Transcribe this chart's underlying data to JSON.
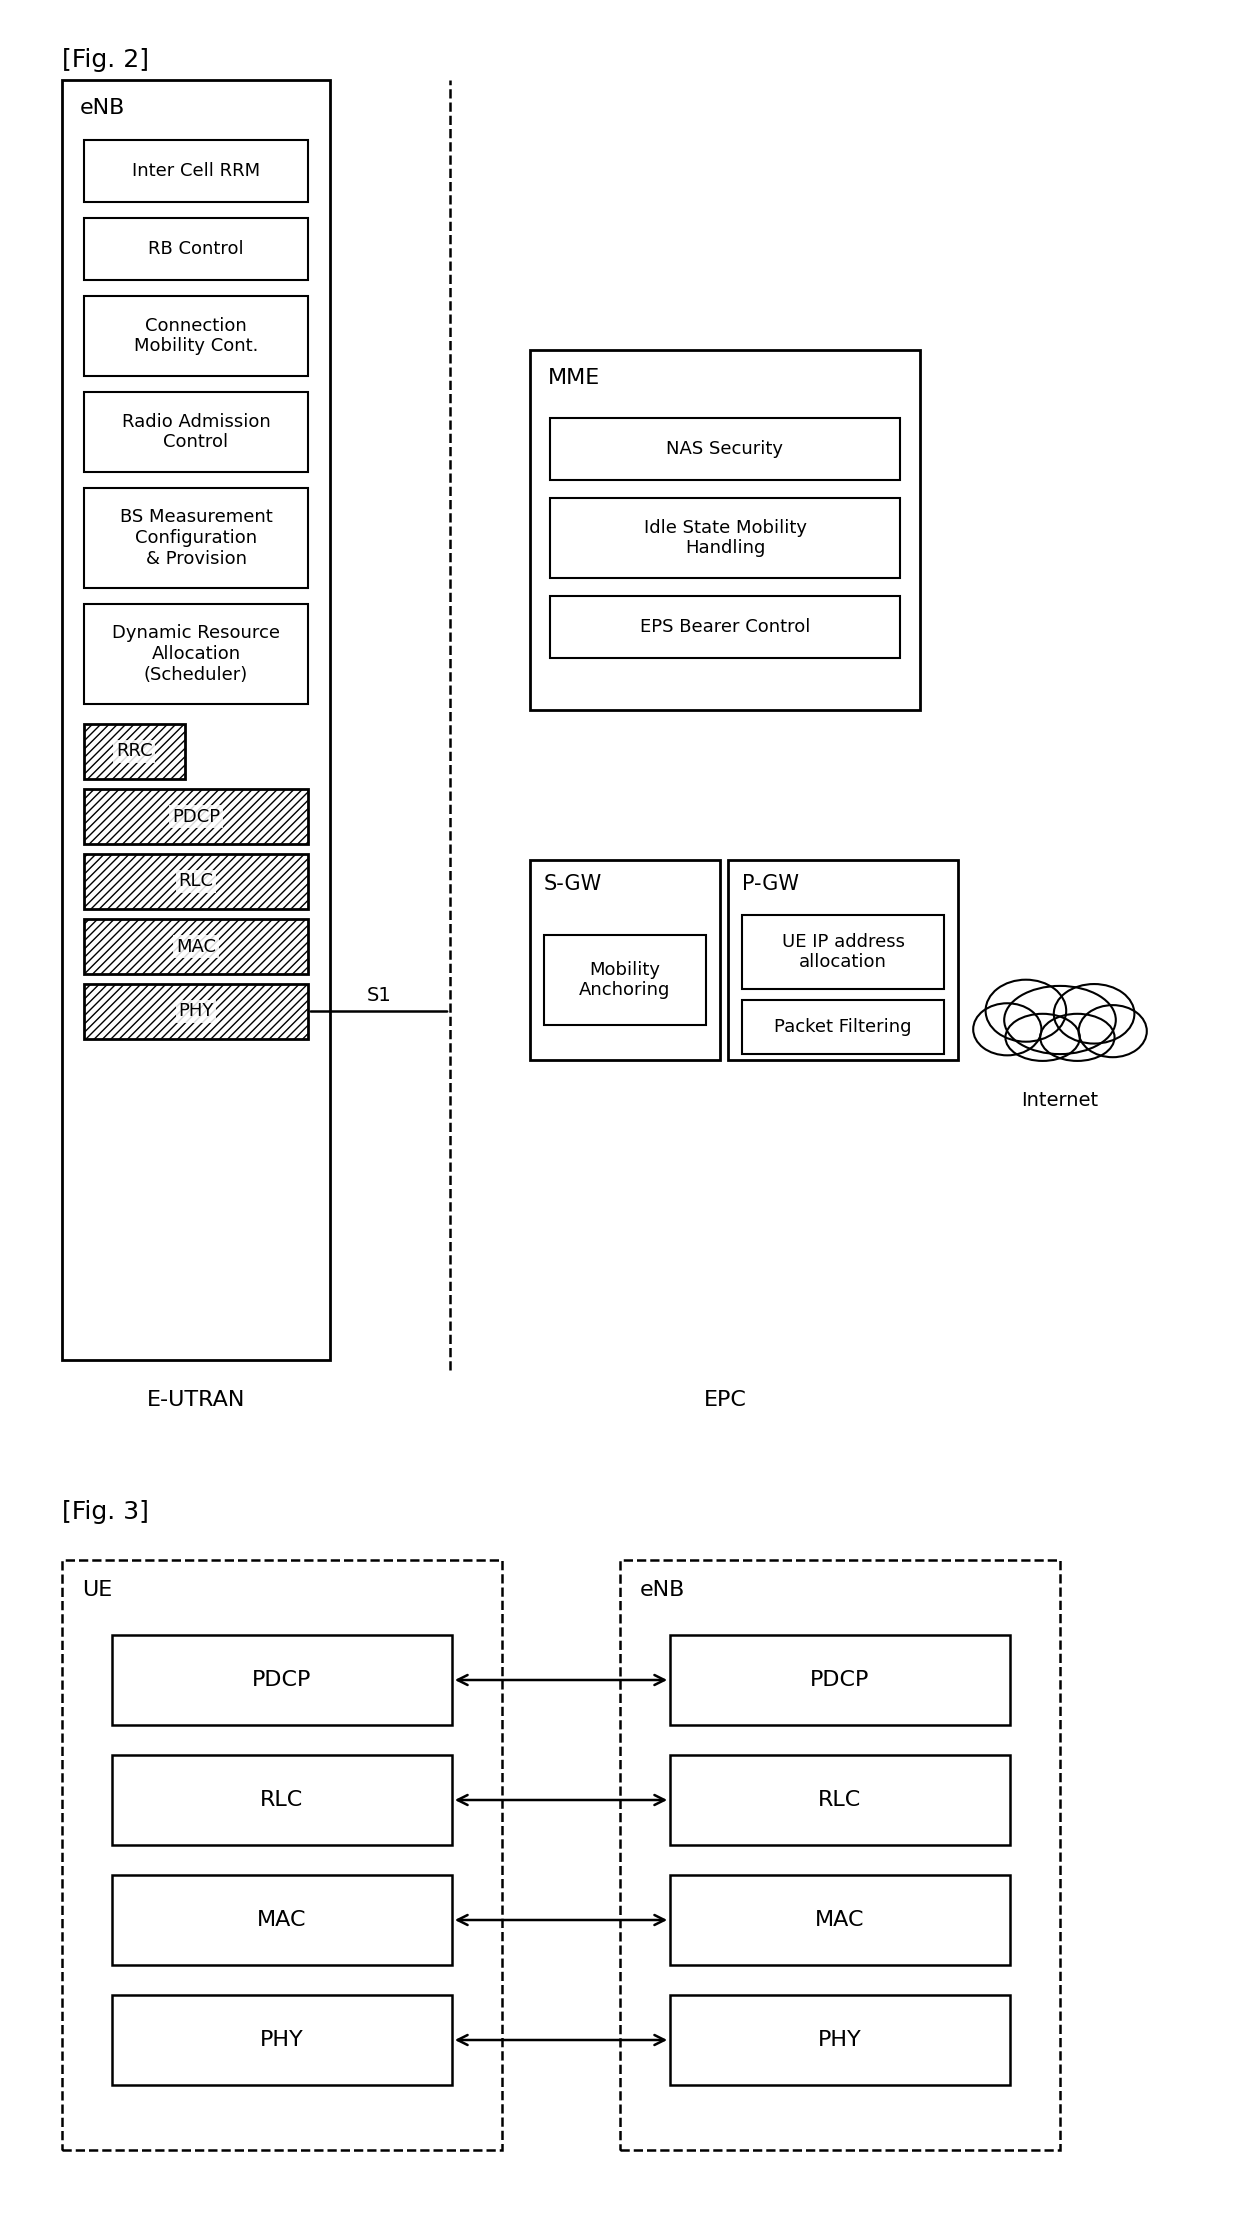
{
  "fig2_title": "[Fig. 2]",
  "fig3_title": "[Fig. 3]",
  "bg_color": "#ffffff",
  "fig2": {
    "enb_label": "eNB",
    "enb_inner_labels": [
      "Inter Cell RRM",
      "RB Control",
      "Connection\nMobility Cont.",
      "Radio Admission\nControl",
      "BS Measurement\nConfiguration\n& Provision",
      "Dynamic Resource\nAllocation\n(Scheduler)"
    ],
    "hatched_labels": [
      "RRC",
      "PDCP",
      "RLC",
      "MAC",
      "PHY"
    ],
    "mme_label": "MME",
    "mme_inner_labels": [
      "NAS Security",
      "Idle State Mobility\nHandling",
      "EPS Bearer Control"
    ],
    "sgw_label": "S-GW",
    "sgw_inner": "Mobility\nAnchoring",
    "pgw_label": "P-GW",
    "pgw_inner1": "UE IP address\nallocation",
    "pgw_inner2": "Packet Filtering",
    "eutran_label": "E-UTRAN",
    "epc_label": "EPC",
    "internet_label": "Internet",
    "s1_label": "S1"
  },
  "fig3": {
    "ue_label": "UE",
    "enb_label": "eNB",
    "layers": [
      "PDCP",
      "RLC",
      "MAC",
      "PHY"
    ]
  }
}
